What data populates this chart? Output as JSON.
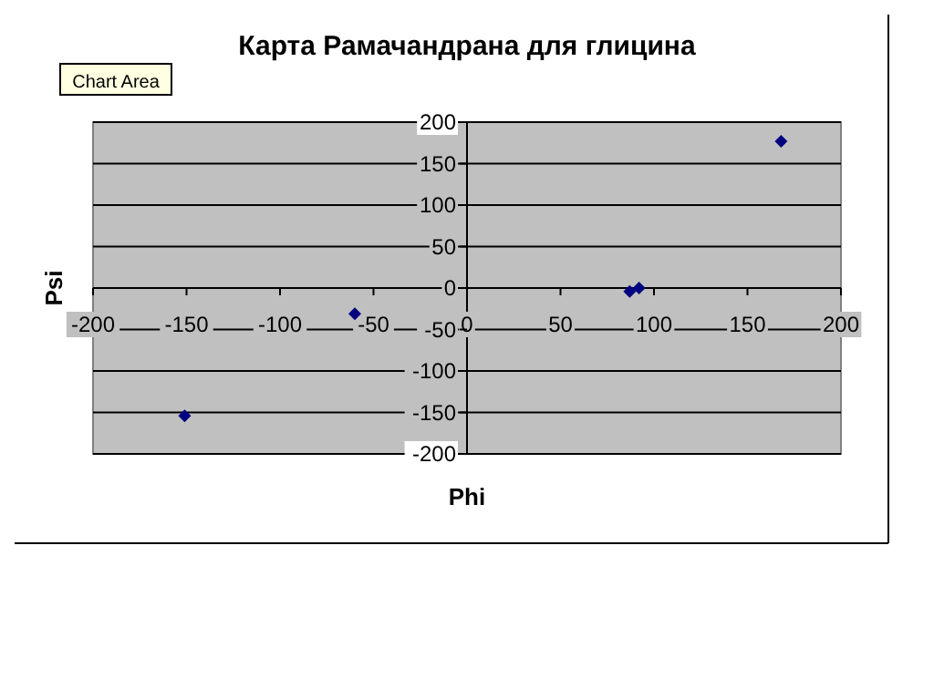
{
  "chart_data": {
    "type": "scatter",
    "title": "Карта Рамачандрана для глицина",
    "xlabel": "Phi",
    "ylabel": "Psi",
    "x": [
      -151,
      -60,
      87,
      92,
      168
    ],
    "series": [
      {
        "color": "#000080",
        "values": [
          -154,
          -31,
          -4,
          0,
          177
        ]
      }
    ],
    "xlim": [
      -200,
      200
    ],
    "xticks": [
      -200,
      -150,
      -100,
      -50,
      0,
      50,
      100,
      150,
      200
    ],
    "ylim": [
      -200,
      200
    ],
    "yticks": [
      -200,
      -150,
      -100,
      -50,
      0,
      50,
      100,
      150,
      200
    ],
    "grid": "y",
    "marker": "diamond",
    "annotations": [
      "Chart Area"
    ]
  }
}
